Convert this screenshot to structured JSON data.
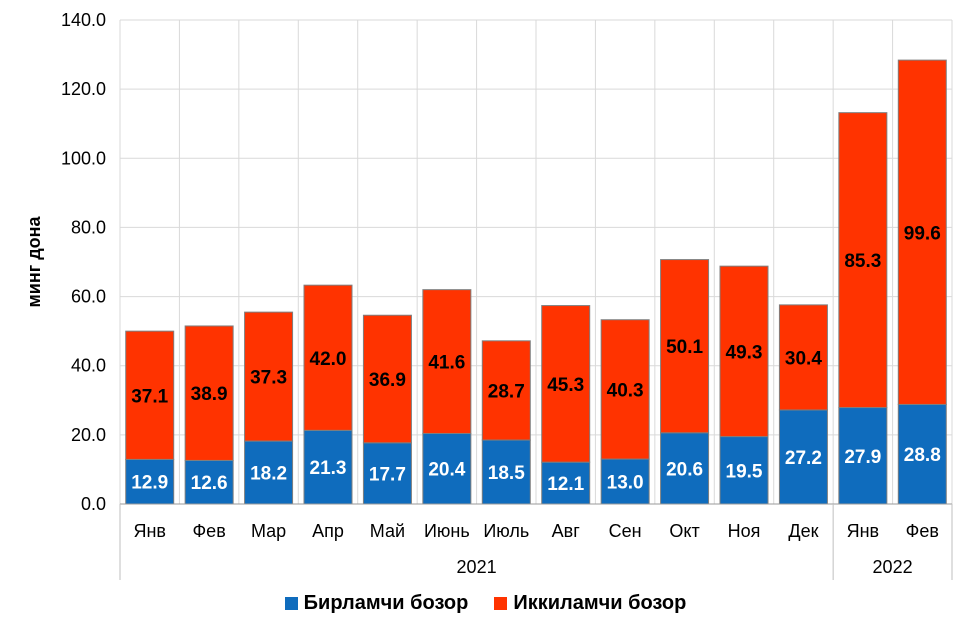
{
  "chart_data": {
    "type": "bar",
    "stacked": true,
    "ylabel": "минг дона",
    "ylim": [
      0,
      140
    ],
    "yticks": [
      "0.0",
      "20.0",
      "40.0",
      "60.0",
      "80.0",
      "100.0",
      "120.0",
      "140.0"
    ],
    "categories": [
      "Янв",
      "Фев",
      "Мар",
      "Апр",
      "Май",
      "Июнь",
      "Июль",
      "Авг",
      "Сен",
      "Окт",
      "Ноя",
      "Дек",
      "Янв",
      "Фев"
    ],
    "groups": [
      {
        "label": "2021",
        "count": 12
      },
      {
        "label": "2022",
        "count": 2
      }
    ],
    "series": [
      {
        "name": "Бирламчи бозор",
        "color": "#0f6cbd",
        "values": [
          12.9,
          12.6,
          18.2,
          21.3,
          17.7,
          20.4,
          18.5,
          12.1,
          13.0,
          20.6,
          19.5,
          27.2,
          27.9,
          28.8
        ]
      },
      {
        "name": "Иккиламчи бозор",
        "color": "#ff3300",
        "values": [
          37.1,
          38.9,
          37.3,
          42.0,
          36.9,
          41.6,
          28.7,
          45.3,
          40.3,
          50.1,
          49.3,
          30.4,
          85.3,
          99.6
        ]
      }
    ],
    "grid": true,
    "legend_position": "bottom"
  }
}
